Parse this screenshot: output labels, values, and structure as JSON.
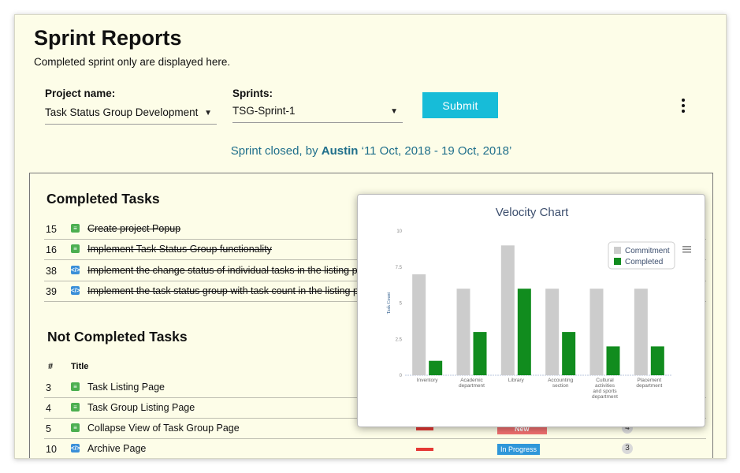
{
  "header": {
    "title": "Sprint Reports",
    "subtitle": "Completed sprint only are displayed here."
  },
  "filters": {
    "project_label": "Project name:",
    "project_value": "Task Status Group Development",
    "sprint_label": "Sprints:",
    "sprint_value": "TSG-Sprint-1",
    "submit_label": "Submit"
  },
  "sprint_info": {
    "prefix": "Sprint closed, by",
    "user": "Austin",
    "dates": "‘11 Oct, 2018 - 19 Oct, 2018’"
  },
  "completed": {
    "title": "Completed Tasks",
    "rows": [
      {
        "num": "15",
        "type": "story",
        "title": "Create project Popup"
      },
      {
        "num": "16",
        "type": "story",
        "title": "Implement Task Status Group functionality"
      },
      {
        "num": "38",
        "type": "task",
        "title": "Implement the change status of individual tasks in the listing page in"
      },
      {
        "num": "39",
        "type": "task",
        "title": "Implement the task status group with task count in the listing page"
      }
    ]
  },
  "not_completed": {
    "title": "Not Completed Tasks",
    "col_num": "#",
    "col_title": "Title",
    "rows": [
      {
        "num": "3",
        "type": "story",
        "title": "Task Listing Page"
      },
      {
        "num": "4",
        "type": "story",
        "title": "Task Group Listing Page"
      },
      {
        "num": "5",
        "type": "story",
        "title": "Collapse View of Task Group Page",
        "status": "New",
        "count": "4"
      },
      {
        "num": "10",
        "type": "task",
        "title": "Archive Page",
        "status": "In Progress",
        "count": "3"
      }
    ]
  },
  "chart_data": {
    "type": "bar",
    "title": "Velocity Chart",
    "ylabel": "Task Count",
    "xlabel": "",
    "ylim": [
      0,
      10
    ],
    "yticks": [
      "0",
      "2.5",
      "5",
      "7.5",
      "10"
    ],
    "categories": [
      "Inventory",
      "Academic department",
      "Library",
      "Accounting section",
      "Cultural activities and sports department",
      "Placement department"
    ],
    "series": [
      {
        "name": "Commitment",
        "color": "#cccccc",
        "values": [
          7,
          6,
          9,
          6,
          6,
          6
        ]
      },
      {
        "name": "Completed",
        "color": "#118c1e",
        "values": [
          1,
          3,
          6,
          3,
          2,
          2
        ]
      }
    ],
    "legend_position": "top-right",
    "grid": false
  }
}
